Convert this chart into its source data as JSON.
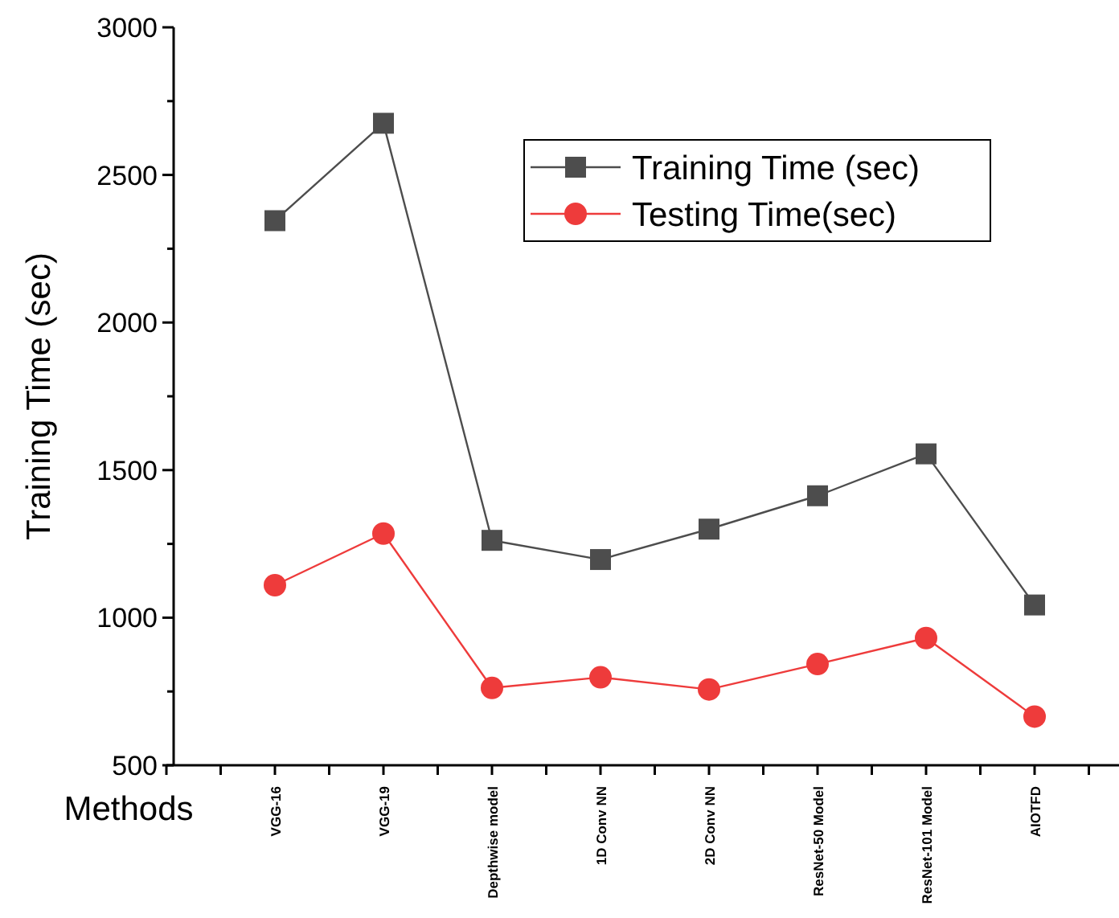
{
  "chart_data": {
    "type": "line",
    "xlabel": "Methods",
    "ylabel": "Training Time (sec)",
    "categories": [
      "VGG-16",
      "VGG-19",
      "Depthwise model",
      "1D Conv NN",
      "2D Conv NN",
      "ResNet-50 Model",
      "ResNet-101 Model",
      "AIOTFD"
    ],
    "series": [
      {
        "name": "Training Time (sec)",
        "color": "#4d4d4d",
        "marker": "square",
        "values": [
          2345,
          2675,
          1262,
          1197,
          1300,
          1413,
          1555,
          1043
        ]
      },
      {
        "name": "Testing Time(sec)",
        "color": "#ee3b3b",
        "marker": "circle",
        "values": [
          1110,
          1285,
          762,
          798,
          757,
          843,
          931,
          665
        ]
      }
    ],
    "ylim": [
      500,
      3000
    ],
    "yticks": [
      500,
      {
        "value": 750,
        "label": null
      },
      1000,
      {
        "value": 1250,
        "label": null
      },
      1500,
      {
        "value": 1750,
        "label": null
      },
      2000,
      {
        "value": 2250,
        "label": null
      },
      2500,
      {
        "value": 2750,
        "label": null
      },
      3000
    ],
    "grid": false,
    "legend": "top right",
    "line_style": "solid"
  }
}
